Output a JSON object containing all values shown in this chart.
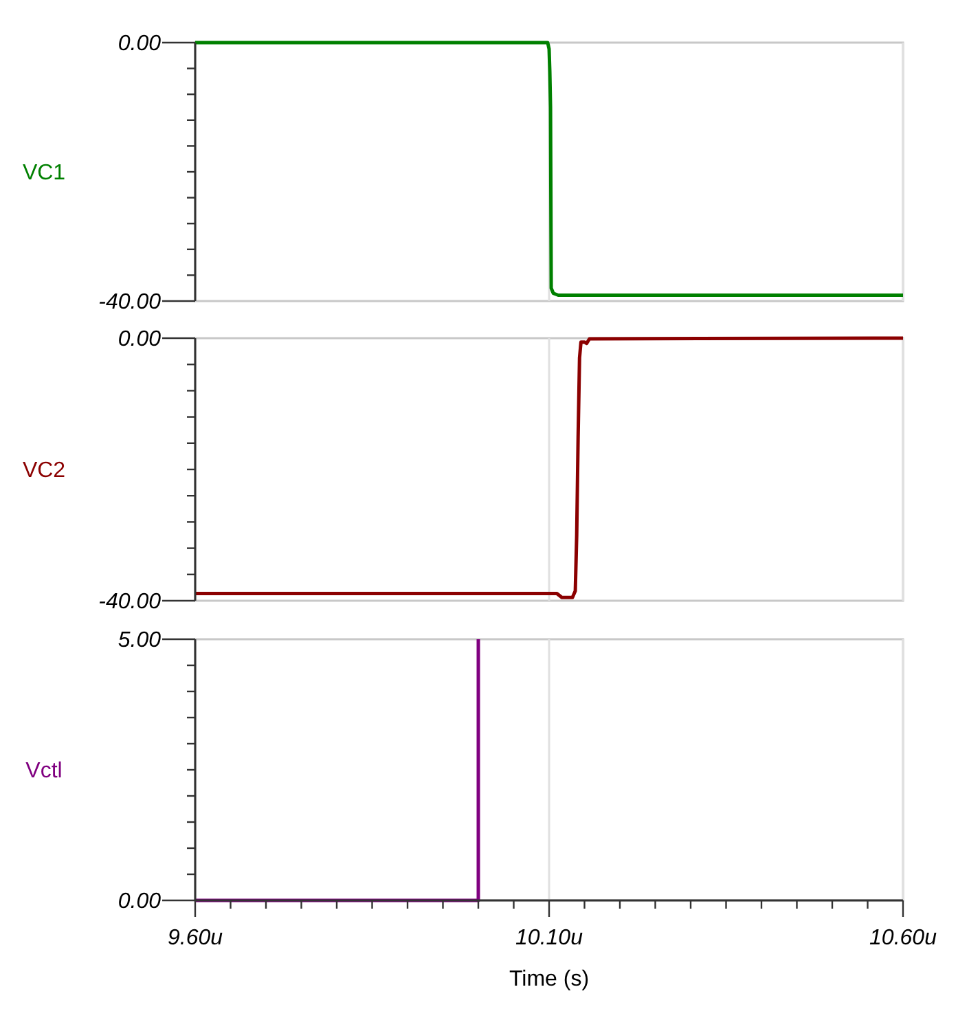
{
  "chart_data": [
    {
      "type": "line",
      "ylabel": "VC1",
      "xlim": [
        9.6,
        10.6
      ],
      "ylim": [
        -40,
        0
      ],
      "grid": "x",
      "tick_labels": "y",
      "line_style": "solid",
      "marker": "none",
      "xticks": [
        {
          "value": 9.6,
          "label": null
        },
        {
          "value": 10.1,
          "label": null
        },
        {
          "value": 10.6,
          "label": null
        }
      ],
      "yticks": [
        {
          "value": 0,
          "label": "0.00"
        },
        {
          "value": -4,
          "label": null
        },
        {
          "value": -8,
          "label": null
        },
        {
          "value": -12,
          "label": null
        },
        {
          "value": -16,
          "label": null
        },
        {
          "value": -20,
          "label": null
        },
        {
          "value": -24,
          "label": null
        },
        {
          "value": -28,
          "label": null
        },
        {
          "value": -32,
          "label": null
        },
        {
          "value": -36,
          "label": null
        },
        {
          "value": -40,
          "label": "-40.00"
        }
      ],
      "series": [
        {
          "color": "#008000",
          "x": [
            9.6,
            10.098,
            10.1,
            10.101,
            10.102,
            10.103,
            10.106,
            10.113,
            10.6
          ],
          "values": [
            0,
            0,
            -1,
            -4.5,
            -10,
            -38,
            -38.8,
            -39.1,
            -39.1
          ]
        }
      ]
    },
    {
      "type": "line",
      "ylabel": "VC2",
      "xlim": [
        9.6,
        10.6
      ],
      "ylim": [
        -40,
        0
      ],
      "grid": "x",
      "tick_labels": "y",
      "line_style": "solid",
      "marker": "none",
      "xticks": [
        {
          "value": 9.6,
          "label": null
        },
        {
          "value": 10.1,
          "label": null
        },
        {
          "value": 10.6,
          "label": null
        }
      ],
      "yticks": [
        {
          "value": 0,
          "label": "0.00"
        },
        {
          "value": -4,
          "label": null
        },
        {
          "value": -8,
          "label": null
        },
        {
          "value": -12,
          "label": null
        },
        {
          "value": -16,
          "label": null
        },
        {
          "value": -20,
          "label": null
        },
        {
          "value": -24,
          "label": null
        },
        {
          "value": -28,
          "label": null
        },
        {
          "value": -32,
          "label": null
        },
        {
          "value": -36,
          "label": null
        },
        {
          "value": -40,
          "label": "-40.00"
        }
      ],
      "series": [
        {
          "color": "#8b0000",
          "x": [
            9.6,
            10.111,
            10.118,
            10.133,
            10.137,
            10.139,
            10.141,
            10.143,
            10.145,
            10.15,
            10.153,
            10.157,
            10.6
          ],
          "values": [
            -38.9,
            -38.9,
            -39.5,
            -39.5,
            -38.5,
            -30,
            -15,
            -3,
            -0.6,
            -0.6,
            -0.8,
            -0.1,
            0
          ]
        }
      ]
    },
    {
      "type": "line",
      "ylabel": "Vctl",
      "xlabel": "Time (s)",
      "xlim": [
        9.6,
        10.6
      ],
      "ylim": [
        0,
        5
      ],
      "grid": "x",
      "line_style": "solid",
      "marker": "none",
      "xticks": [
        {
          "value": 9.6,
          "label": "9.60u"
        },
        {
          "value": 9.65,
          "label": null
        },
        {
          "value": 9.7,
          "label": null
        },
        {
          "value": 9.75,
          "label": null
        },
        {
          "value": 9.8,
          "label": null
        },
        {
          "value": 9.85,
          "label": null
        },
        {
          "value": 9.9,
          "label": null
        },
        {
          "value": 9.95,
          "label": null
        },
        {
          "value": 10.0,
          "label": null
        },
        {
          "value": 10.05,
          "label": null
        },
        {
          "value": 10.1,
          "label": "10.10u"
        },
        {
          "value": 10.15,
          "label": null
        },
        {
          "value": 10.2,
          "label": null
        },
        {
          "value": 10.25,
          "label": null
        },
        {
          "value": 10.3,
          "label": null
        },
        {
          "value": 10.35,
          "label": null
        },
        {
          "value": 10.4,
          "label": null
        },
        {
          "value": 10.45,
          "label": null
        },
        {
          "value": 10.5,
          "label": null
        },
        {
          "value": 10.55,
          "label": null
        },
        {
          "value": 10.6,
          "label": "10.60u"
        }
      ],
      "yticks": [
        {
          "value": 5,
          "label": "5.00"
        },
        {
          "value": 4.5,
          "label": null
        },
        {
          "value": 4,
          "label": null
        },
        {
          "value": 3.5,
          "label": null
        },
        {
          "value": 3,
          "label": null
        },
        {
          "value": 2.5,
          "label": null
        },
        {
          "value": 2,
          "label": null
        },
        {
          "value": 1.5,
          "label": null
        },
        {
          "value": 1,
          "label": null
        },
        {
          "value": 0.5,
          "label": null
        },
        {
          "value": 0,
          "label": "0.00"
        }
      ],
      "series": [
        {
          "color": "#800080",
          "x": [
            9.6,
            10.0,
            10.0
          ],
          "values": [
            0,
            0,
            5
          ]
        }
      ]
    }
  ]
}
